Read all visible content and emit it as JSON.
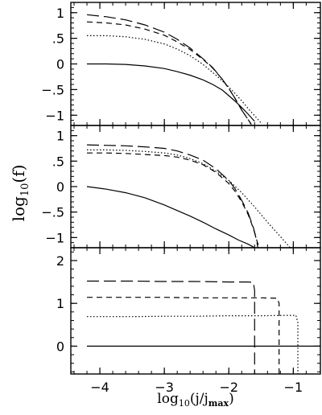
{
  "chart_data": [
    {
      "type": "line",
      "panel": "top",
      "xlim": [
        -4.45,
        -0.58
      ],
      "ylim": [
        -1.2,
        1.2
      ],
      "yticks": [
        -1,
        -0.5,
        0,
        0.5,
        1
      ],
      "ytick_labels": [
        "−1",
        "−.5",
        "0",
        ".5",
        "1"
      ],
      "series": [
        {
          "style": "solid",
          "points": [
            [
              -4.2,
              0.0
            ],
            [
              -3.9,
              0.0
            ],
            [
              -3.6,
              -0.01
            ],
            [
              -3.3,
              -0.04
            ],
            [
              -3.0,
              -0.09
            ],
            [
              -2.8,
              -0.15
            ],
            [
              -2.6,
              -0.22
            ],
            [
              -2.4,
              -0.31
            ],
            [
              -2.25,
              -0.4
            ],
            [
              -2.1,
              -0.51
            ],
            [
              -2.0,
              -0.62
            ],
            [
              -1.9,
              -0.73
            ],
            [
              -1.8,
              -0.85
            ],
            [
              -1.7,
              -0.98
            ],
            [
              -1.6,
              -1.12
            ]
          ]
        },
        {
          "style": "longdash",
          "points": [
            [
              -4.2,
              0.96
            ],
            [
              -3.9,
              0.92
            ],
            [
              -3.6,
              0.86
            ],
            [
              -3.3,
              0.76
            ],
            [
              -3.0,
              0.62
            ],
            [
              -2.8,
              0.48
            ],
            [
              -2.6,
              0.31
            ],
            [
              -2.4,
              0.1
            ],
            [
              -2.25,
              -0.07
            ],
            [
              -2.1,
              -0.3
            ],
            [
              -2.0,
              -0.48
            ],
            [
              -1.9,
              -0.68
            ],
            [
              -1.8,
              -0.9
            ],
            [
              -1.72,
              -1.05
            ],
            [
              -1.65,
              -1.18
            ]
          ]
        },
        {
          "style": "shortdash",
          "points": [
            [
              -4.2,
              0.82
            ],
            [
              -3.9,
              0.8
            ],
            [
              -3.6,
              0.76
            ],
            [
              -3.3,
              0.68
            ],
            [
              -3.0,
              0.56
            ],
            [
              -2.8,
              0.43
            ],
            [
              -2.6,
              0.28
            ],
            [
              -2.4,
              0.09
            ],
            [
              -2.25,
              -0.08
            ],
            [
              -2.1,
              -0.3
            ],
            [
              -2.0,
              -0.48
            ],
            [
              -1.9,
              -0.68
            ],
            [
              -1.8,
              -0.9
            ],
            [
              -1.72,
              -1.05
            ],
            [
              -1.66,
              -1.17
            ]
          ]
        },
        {
          "style": "dotted",
          "points": [
            [
              -4.2,
              0.55
            ],
            [
              -3.9,
              0.55
            ],
            [
              -3.6,
              0.53
            ],
            [
              -3.3,
              0.48
            ],
            [
              -3.0,
              0.39
            ],
            [
              -2.8,
              0.29
            ],
            [
              -2.6,
              0.16
            ],
            [
              -2.4,
              -0.01
            ],
            [
              -2.2,
              -0.22
            ],
            [
              -2.0,
              -0.45
            ],
            [
              -1.9,
              -0.58
            ],
            [
              -1.8,
              -0.72
            ],
            [
              -1.7,
              -0.87
            ],
            [
              -1.6,
              -1.01
            ],
            [
              -1.5,
              -1.15
            ]
          ]
        }
      ]
    },
    {
      "type": "line",
      "panel": "middle",
      "xlim": [
        -4.45,
        -0.58
      ],
      "ylim": [
        -1.2,
        1.2
      ],
      "yticks": [
        -1,
        -0.5,
        0,
        0.5,
        1
      ],
      "ytick_labels": [
        "−1",
        "−.5",
        "0",
        ".5",
        "1"
      ],
      "series": [
        {
          "style": "solid",
          "points": [
            [
              -4.2,
              0.0
            ],
            [
              -3.9,
              -0.05
            ],
            [
              -3.6,
              -0.12
            ],
            [
              -3.3,
              -0.22
            ],
            [
              -3.0,
              -0.36
            ],
            [
              -2.8,
              -0.47
            ],
            [
              -2.6,
              -0.58
            ],
            [
              -2.4,
              -0.7
            ],
            [
              -2.2,
              -0.83
            ],
            [
              -2.0,
              -0.95
            ],
            [
              -1.85,
              -1.05
            ],
            [
              -1.7,
              -1.13
            ],
            [
              -1.6,
              -1.2
            ]
          ]
        },
        {
          "style": "longdash",
          "points": [
            [
              -4.2,
              0.82
            ],
            [
              -3.9,
              0.81
            ],
            [
              -3.6,
              0.8
            ],
            [
              -3.3,
              0.78
            ],
            [
              -3.0,
              0.75
            ],
            [
              -2.8,
              0.7
            ],
            [
              -2.6,
              0.62
            ],
            [
              -2.4,
              0.52
            ],
            [
              -2.2,
              0.35
            ],
            [
              -2.0,
              0.12
            ],
            [
              -1.9,
              -0.05
            ],
            [
              -1.8,
              -0.27
            ],
            [
              -1.7,
              -0.52
            ],
            [
              -1.62,
              -0.8
            ],
            [
              -1.57,
              -1.05
            ],
            [
              -1.55,
              -1.2
            ]
          ]
        },
        {
          "style": "shortdash",
          "points": [
            [
              -4.2,
              0.66
            ],
            [
              -3.9,
              0.66
            ],
            [
              -3.6,
              0.65
            ],
            [
              -3.3,
              0.63
            ],
            [
              -3.0,
              0.61
            ],
            [
              -2.8,
              0.58
            ],
            [
              -2.6,
              0.52
            ],
            [
              -2.4,
              0.43
            ],
            [
              -2.2,
              0.28
            ],
            [
              -2.0,
              0.06
            ],
            [
              -1.9,
              -0.1
            ],
            [
              -1.8,
              -0.3
            ],
            [
              -1.7,
              -0.55
            ],
            [
              -1.62,
              -0.82
            ],
            [
              -1.56,
              -1.08
            ],
            [
              -1.53,
              -1.2
            ]
          ]
        },
        {
          "style": "dotted",
          "points": [
            [
              -4.2,
              0.72
            ],
            [
              -3.9,
              0.72
            ],
            [
              -3.6,
              0.71
            ],
            [
              -3.3,
              0.69
            ],
            [
              -3.0,
              0.66
            ],
            [
              -2.8,
              0.62
            ],
            [
              -2.6,
              0.55
            ],
            [
              -2.4,
              0.45
            ],
            [
              -2.2,
              0.3
            ],
            [
              -2.0,
              0.12
            ],
            [
              -1.8,
              -0.12
            ],
            [
              -1.6,
              -0.4
            ],
            [
              -1.4,
              -0.7
            ],
            [
              -1.2,
              -0.98
            ],
            [
              -1.05,
              -1.2
            ]
          ]
        }
      ]
    },
    {
      "type": "line",
      "panel": "bottom",
      "xlim": [
        -4.45,
        -0.58
      ],
      "ylim": [
        -0.65,
        2.3
      ],
      "yticks": [
        0,
        1,
        2
      ],
      "ytick_labels": [
        "0",
        "1",
        "2"
      ],
      "xticks": [
        -4,
        -3,
        -2,
        -1
      ],
      "xtick_labels": [
        "−4",
        "−3",
        "−2",
        "−1"
      ],
      "series": [
        {
          "style": "solid",
          "points": [
            [
              -4.2,
              0.0
            ],
            [
              -3.5,
              0.0
            ],
            [
              -3.0,
              0.0
            ],
            [
              -2.5,
              0.0
            ],
            [
              -2.0,
              0.0
            ],
            [
              -1.5,
              0.0
            ],
            [
              -1.0,
              0.0
            ],
            [
              -0.58,
              0.0
            ]
          ]
        },
        {
          "style": "longdash",
          "points": [
            [
              -4.2,
              1.52
            ],
            [
              -3.5,
              1.52
            ],
            [
              -3.0,
              1.51
            ],
            [
              -2.5,
              1.51
            ],
            [
              -2.0,
              1.5
            ],
            [
              -1.7,
              1.5
            ],
            [
              -1.62,
              1.49
            ],
            [
              -1.6,
              1.3
            ],
            [
              -1.6,
              -0.65
            ]
          ]
        },
        {
          "style": "shortdash",
          "points": [
            [
              -4.2,
              1.14
            ],
            [
              -3.5,
              1.14
            ],
            [
              -3.0,
              1.14
            ],
            [
              -2.5,
              1.13
            ],
            [
              -2.0,
              1.13
            ],
            [
              -1.5,
              1.13
            ],
            [
              -1.25,
              1.12
            ],
            [
              -1.22,
              1.0
            ],
            [
              -1.22,
              -0.65
            ]
          ]
        },
        {
          "style": "dotted",
          "points": [
            [
              -4.2,
              0.69
            ],
            [
              -3.5,
              0.69
            ],
            [
              -3.0,
              0.7
            ],
            [
              -2.5,
              0.7
            ],
            [
              -2.0,
              0.71
            ],
            [
              -1.5,
              0.71
            ],
            [
              -1.1,
              0.72
            ],
            [
              -0.96,
              0.72
            ],
            [
              -0.93,
              0.55
            ],
            [
              -0.93,
              -0.65
            ]
          ]
        }
      ]
    }
  ],
  "ylabel": "log",
  "ylabel_sub": "10",
  "ylabel_rest": "(f)",
  "xlabel": "log",
  "xlabel_sub": "10",
  "xlabel_mid": "(j/j",
  "xlabel_sub2": "max",
  "xlabel_end": ")"
}
